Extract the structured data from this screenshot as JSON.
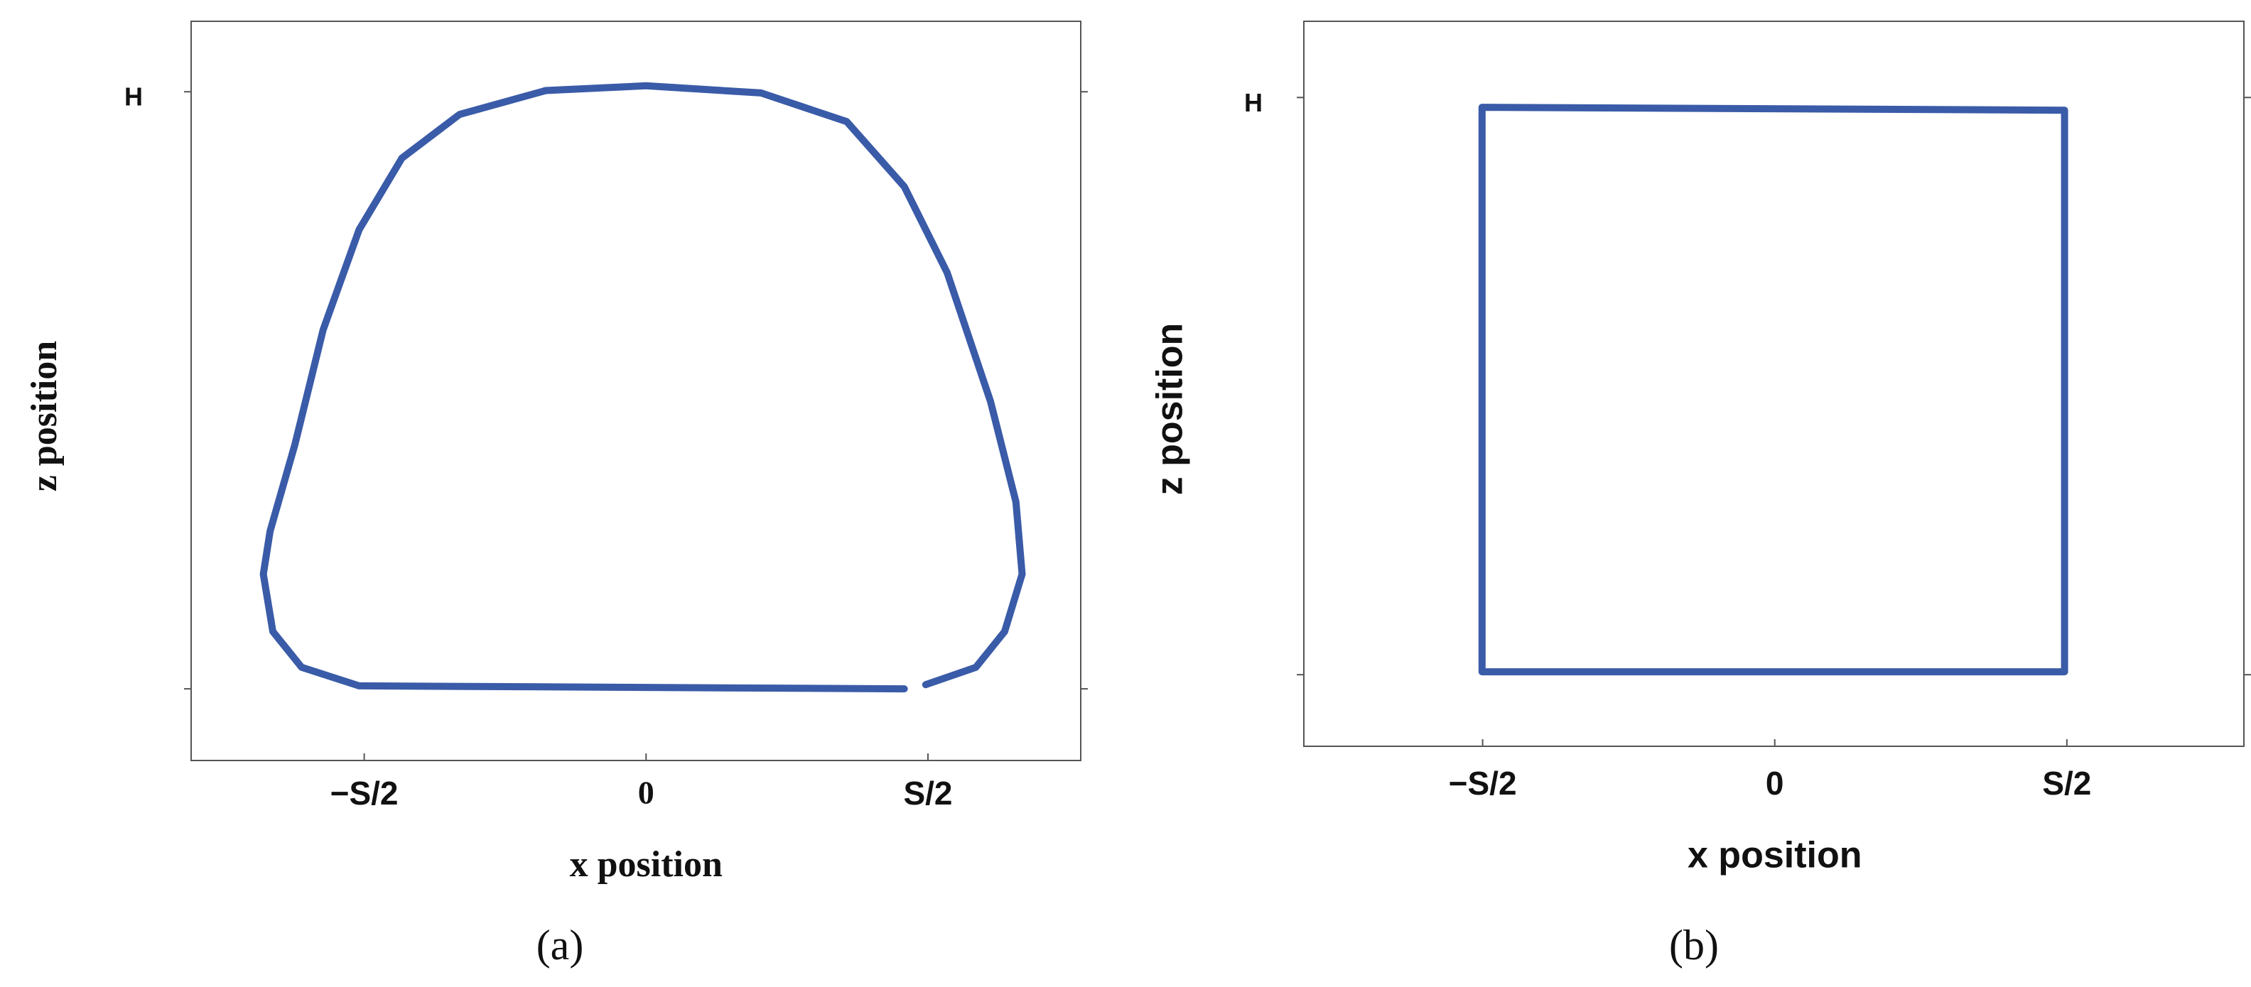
{
  "chart_data": [
    {
      "type": "line",
      "caption": "(a)",
      "xlabel": "x position",
      "ylabel": "z position",
      "xlim": [
        -0.807,
        0.771
      ],
      "ylim": [
        -0.12,
        1.118
      ],
      "xticks": [
        {
          "value": -0.5,
          "label": "−S/2"
        },
        0,
        {
          "value": 0.5,
          "label": "S/2"
        }
      ],
      "yticks": [
        {
          "value": 0,
          "label": null
        },
        {
          "value": 1,
          "label": "H"
        }
      ],
      "color": "#3a5ba8",
      "x": [
        0.496,
        0.585,
        0.636,
        0.667,
        0.656,
        0.611,
        0.534,
        0.458,
        0.356,
        0.204,
        0,
        -0.178,
        -0.331,
        -0.433,
        -0.509,
        -0.573,
        -0.623,
        -0.667,
        -0.679,
        -0.662,
        -0.611,
        -0.509,
        0.458
      ],
      "values": [
        0.007,
        0.036,
        0.096,
        0.192,
        0.313,
        0.481,
        0.697,
        0.841,
        0.95,
        0.998,
        1.01,
        1.002,
        0.962,
        0.889,
        0.769,
        0.601,
        0.409,
        0.264,
        0.192,
        0.096,
        0.036,
        0.005,
        0.0
      ]
    },
    {
      "type": "line",
      "caption": "(b)",
      "xlabel": "x position",
      "ylabel": "z position",
      "xlim": [
        -0.806,
        0.803
      ],
      "ylim": [
        -0.124,
        1.132
      ],
      "xticks": [
        {
          "value": -0.5,
          "label": "−S/2"
        },
        0,
        {
          "value": 0.5,
          "label": "S/2"
        }
      ],
      "yticks": [
        {
          "value": 0,
          "label": null
        },
        {
          "value": 1,
          "label": "H"
        }
      ],
      "color": "#3a5ba8",
      "x": [
        -0.501,
        0.496,
        0.496,
        -0.501,
        -0.501
      ],
      "values": [
        0.983,
        0.978,
        0.005,
        0.005,
        0.983
      ]
    }
  ]
}
